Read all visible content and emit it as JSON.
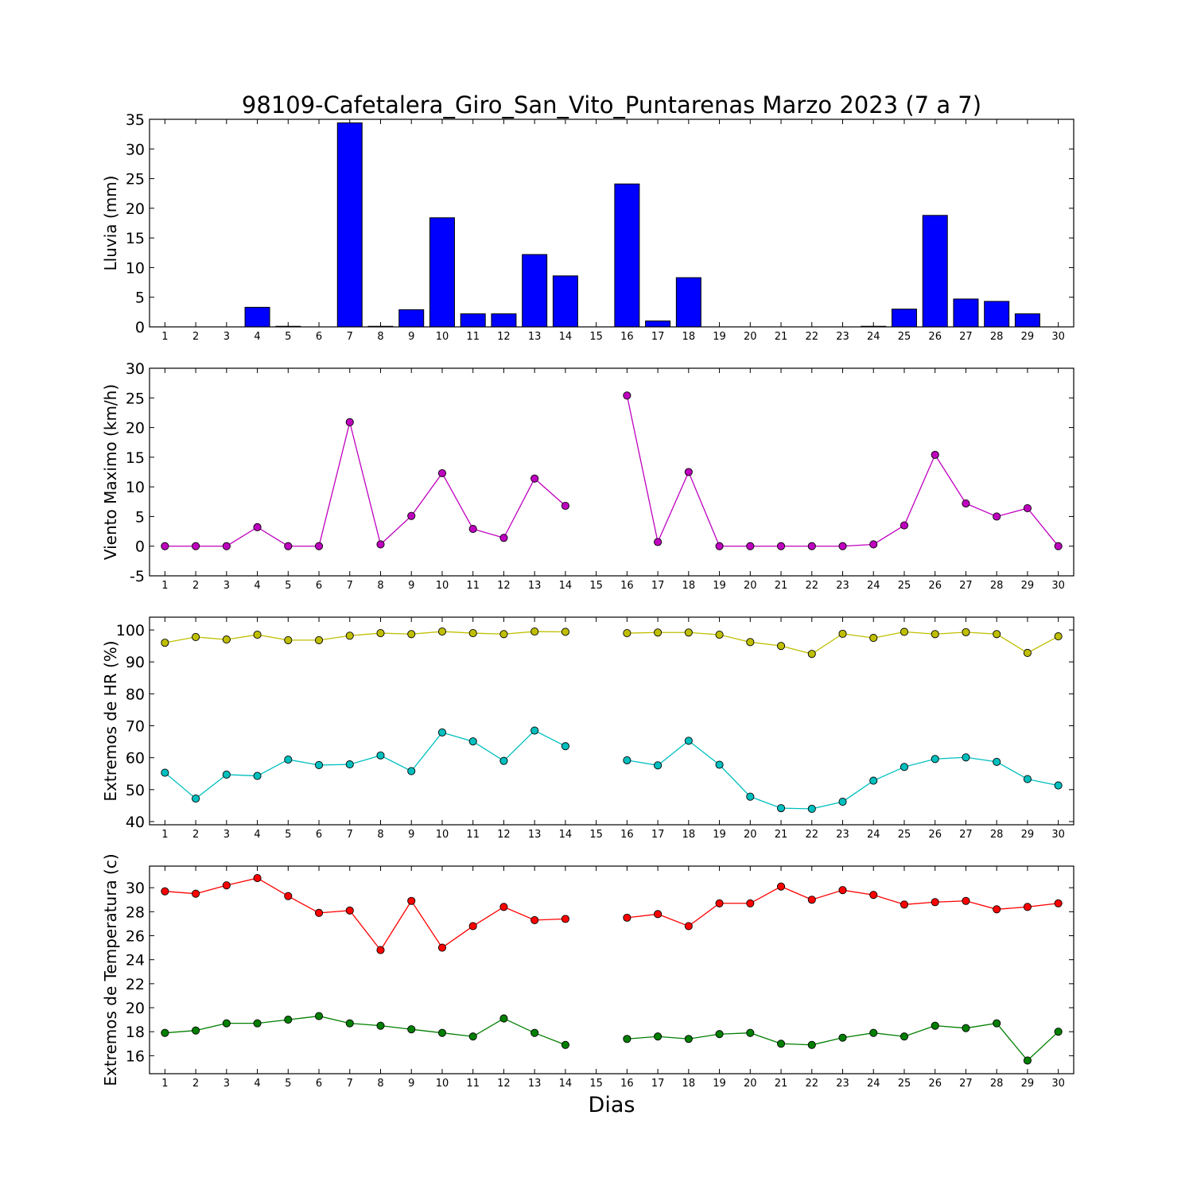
{
  "title": "98109-Cafetalera_Giro_San_Vito_Puntarenas Marzo 2023  (7 a 7)",
  "xlabel": "Dias",
  "chart_data": [
    {
      "type": "bar",
      "ylabel": "Lluvia (mm)",
      "ylim": [
        0,
        35
      ],
      "yticks": [
        0,
        5,
        10,
        15,
        20,
        25,
        30,
        35
      ],
      "x": [
        1,
        2,
        3,
        4,
        5,
        6,
        7,
        8,
        9,
        10,
        11,
        12,
        13,
        14,
        15,
        16,
        17,
        18,
        19,
        20,
        21,
        22,
        23,
        24,
        25,
        26,
        27,
        28,
        29,
        30
      ],
      "series": [
        {
          "color": "#0000ff",
          "values": [
            0,
            0,
            0,
            3.3,
            0.1,
            0,
            34.4,
            0.1,
            2.9,
            18.4,
            2.2,
            2.2,
            12.2,
            8.6,
            null,
            24.1,
            1.0,
            8.3,
            0,
            0,
            0,
            0,
            0,
            0.1,
            3.0,
            18.8,
            4.7,
            4.3,
            2.2,
            null
          ]
        }
      ]
    },
    {
      "type": "line",
      "ylabel": "Viento Maximo (km/h)",
      "ylim": [
        -5,
        30
      ],
      "yticks": [
        -5,
        0,
        5,
        10,
        15,
        20,
        25,
        30
      ],
      "x": [
        1,
        2,
        3,
        4,
        5,
        6,
        7,
        8,
        9,
        10,
        11,
        12,
        13,
        14,
        15,
        16,
        17,
        18,
        19,
        20,
        21,
        22,
        23,
        24,
        25,
        26,
        27,
        28,
        29,
        30
      ],
      "series": [
        {
          "color": "#bf00bf",
          "values": [
            0,
            0,
            0,
            3.2,
            0,
            0,
            20.9,
            0.3,
            5.1,
            12.3,
            2.9,
            1.4,
            11.4,
            6.8,
            null,
            25.4,
            0.7,
            12.5,
            0,
            0,
            0,
            0,
            0,
            0.3,
            3.5,
            15.4,
            7.2,
            5.0,
            6.4,
            0
          ]
        }
      ]
    },
    {
      "type": "line",
      "ylabel": "Extremos de HR (%)",
      "ylim": [
        39,
        104
      ],
      "yticks": [
        40,
        50,
        60,
        70,
        80,
        90,
        100
      ],
      "x": [
        1,
        2,
        3,
        4,
        5,
        6,
        7,
        8,
        9,
        10,
        11,
        12,
        13,
        14,
        15,
        16,
        17,
        18,
        19,
        20,
        21,
        22,
        23,
        24,
        25,
        26,
        27,
        28,
        29,
        30
      ],
      "series": [
        {
          "color": "#bfbf00",
          "values": [
            96,
            97.8,
            97,
            98.5,
            96.8,
            96.8,
            98.2,
            99,
            98.7,
            99.5,
            99,
            98.7,
            99.5,
            99.4,
            null,
            99,
            99.2,
            99.2,
            98.5,
            96.2,
            95,
            92.5,
            98.8,
            97.5,
            99.4,
            98.7,
            99.3,
            98.7,
            92.8,
            98
          ]
        },
        {
          "color": "#00bfbf",
          "values": [
            55.3,
            47.2,
            54.7,
            54.3,
            59.4,
            57.7,
            57.9,
            60.7,
            55.8,
            67.9,
            65.1,
            59,
            68.5,
            63.6,
            null,
            59.2,
            57.6,
            65.3,
            57.8,
            47.8,
            44.2,
            44,
            46.2,
            52.8,
            57.1,
            59.6,
            60.1,
            58.7,
            53.3,
            51.3
          ]
        }
      ]
    },
    {
      "type": "line",
      "ylabel": "Extremos de Temperatura (c)",
      "ylim": [
        14.5,
        31.8
      ],
      "yticks": [
        16,
        18,
        20,
        22,
        24,
        26,
        28,
        30
      ],
      "x": [
        1,
        2,
        3,
        4,
        5,
        6,
        7,
        8,
        9,
        10,
        11,
        12,
        13,
        14,
        15,
        16,
        17,
        18,
        19,
        20,
        21,
        22,
        23,
        24,
        25,
        26,
        27,
        28,
        29,
        30
      ],
      "series": [
        {
          "color": "#ff0000",
          "values": [
            29.7,
            29.5,
            30.2,
            30.8,
            29.3,
            27.9,
            28.1,
            24.8,
            28.9,
            25.0,
            26.8,
            28.4,
            27.3,
            27.4,
            null,
            27.5,
            27.8,
            26.8,
            28.7,
            28.7,
            30.1,
            29.0,
            29.8,
            29.4,
            28.6,
            28.8,
            28.9,
            28.2,
            28.4,
            28.7
          ]
        },
        {
          "color": "#007f00",
          "values": [
            17.9,
            18.1,
            18.7,
            18.7,
            19.0,
            19.3,
            18.7,
            18.5,
            18.2,
            17.9,
            17.6,
            19.1,
            17.9,
            16.9,
            null,
            17.4,
            17.6,
            17.4,
            17.8,
            17.9,
            17.0,
            16.9,
            17.5,
            17.9,
            17.6,
            18.5,
            18.3,
            18.7,
            15.6,
            18.0
          ]
        }
      ]
    }
  ]
}
